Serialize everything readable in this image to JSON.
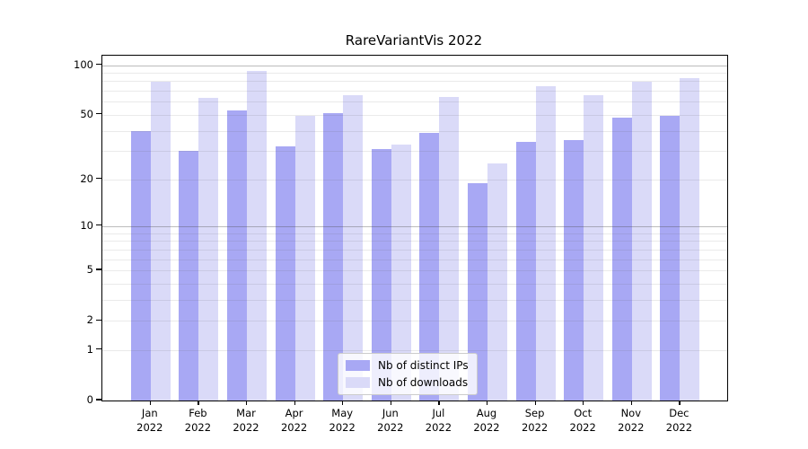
{
  "title": "RareVariantVis 2022",
  "legend": {
    "items": [
      {
        "label": "Nb of distinct IPs"
      },
      {
        "label": "Nb of downloads"
      }
    ]
  },
  "chart_data": {
    "type": "bar",
    "title": "RareVariantVis 2022",
    "scale": "log1p (position proportional to log10(1+value))",
    "categories": [
      "Jan 2022",
      "Feb 2022",
      "Mar 2022",
      "Apr 2022",
      "May 2022",
      "Jun 2022",
      "Jul 2022",
      "Aug 2022",
      "Sep 2022",
      "Oct 2022",
      "Nov 2022",
      "Dec 2022"
    ],
    "month_labels": [
      "Jan",
      "Feb",
      "Mar",
      "Apr",
      "May",
      "Jun",
      "Jul",
      "Aug",
      "Sep",
      "Oct",
      "Nov",
      "Dec"
    ],
    "year_label": "2022",
    "series": [
      {
        "name": "Nb of distinct IPs",
        "color": "#a8a8f4",
        "values": [
          40,
          30,
          53,
          32,
          51,
          31,
          39,
          19,
          34,
          35,
          48,
          49
        ]
      },
      {
        "name": "Nb of downloads",
        "color": "#dadaf8",
        "values": [
          79,
          63,
          92,
          49,
          66,
          33,
          64,
          25,
          75,
          66,
          79,
          83
        ]
      }
    ],
    "yticks": [
      100,
      50,
      20,
      10,
      5,
      2,
      1,
      0
    ],
    "ylim": [
      0,
      114
    ],
    "grid": {
      "minor_values": [
        1,
        2,
        3,
        4,
        5,
        6,
        7,
        8,
        9,
        20,
        30,
        40,
        50,
        60,
        70,
        80,
        90
      ],
      "major_values": [
        10,
        100
      ]
    },
    "legend_position": "lower center",
    "xlabel": "",
    "ylabel": ""
  }
}
